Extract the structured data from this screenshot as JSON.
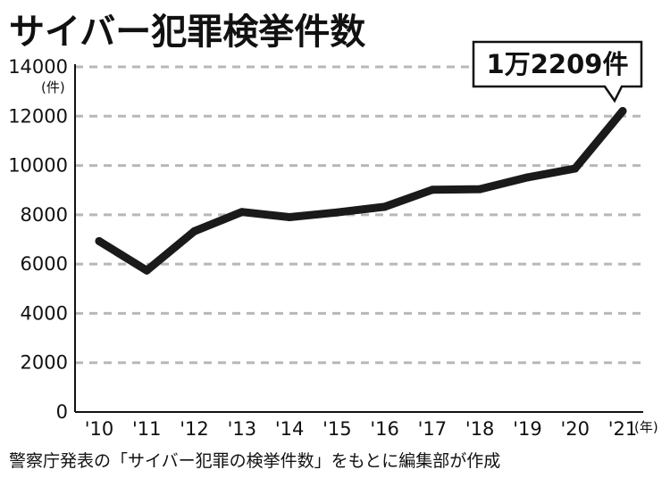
{
  "chart_data": {
    "type": "line",
    "title": "サイバー犯罪検挙件数",
    "ylabel": "(件)",
    "xlabel": "(年)",
    "ylim": [
      0,
      14000
    ],
    "yticks": [
      "0",
      "2000",
      "4000",
      "6000",
      "8000",
      "10000",
      "12000",
      "14000"
    ],
    "categories": [
      "'10",
      "'11",
      "'12",
      "'13",
      "'14",
      "'15",
      "'16",
      "'17",
      "'18",
      "'19",
      "'20",
      "'21"
    ],
    "values": [
      6933,
      5741,
      7334,
      8113,
      7905,
      8096,
      8324,
      9014,
      9040,
      9519,
      9875,
      12209
    ],
    "grid": true,
    "annotation": "1万2209件",
    "source": "警察庁発表の「サイバー犯罪の検挙件数」をもとに編集部が作成",
    "line_color": "#1a1a1a",
    "grid_color": "#b8b8b8"
  }
}
